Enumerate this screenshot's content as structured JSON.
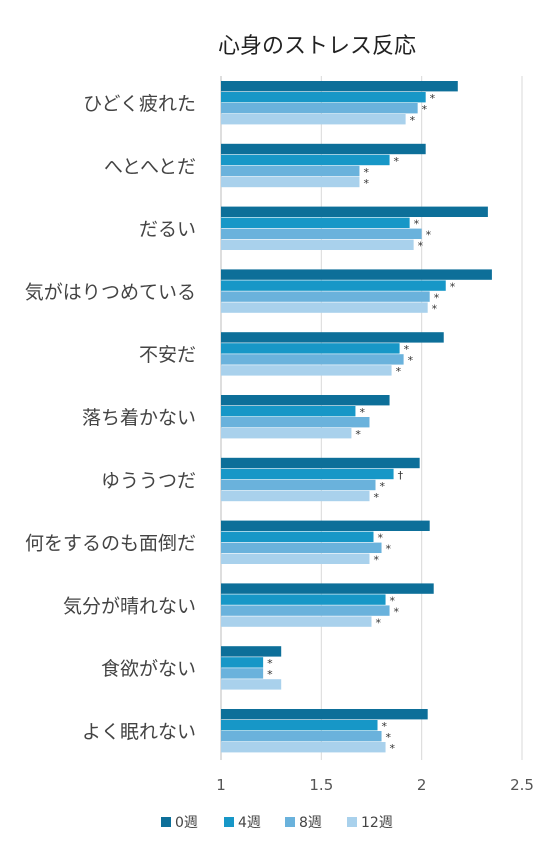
{
  "chart_data": {
    "type": "bar",
    "orientation": "horizontal",
    "title": "心身のストレス反応",
    "xlabel": "",
    "ylabel": "",
    "xlim": [
      1,
      2.5
    ],
    "xticks": [
      "1",
      "1.5",
      "2",
      "2.5"
    ],
    "grid": true,
    "legend_position": "bottom",
    "categories": [
      "ひどく疲れた",
      "へとへとだ",
      "だるい",
      "気がはりつめている",
      "不安だ",
      "落ち着かない",
      "ゆううつだ",
      "何をするのも面倒だ",
      "気分が晴れない",
      "食欲がない",
      "よく眠れない"
    ],
    "series": [
      {
        "name": "0週",
        "color": "#0d6f99",
        "values": [
          2.18,
          2.02,
          2.33,
          2.35,
          2.11,
          1.84,
          1.99,
          2.04,
          2.06,
          1.3,
          2.03
        ],
        "marks": [
          "",
          "",
          "",
          "",
          "",
          "",
          "",
          "",
          "",
          "",
          ""
        ]
      },
      {
        "name": "4週",
        "color": "#1797c7",
        "values": [
          2.02,
          1.84,
          1.94,
          2.12,
          1.89,
          1.67,
          1.86,
          1.76,
          1.82,
          1.21,
          1.78
        ],
        "marks": [
          "*",
          "*",
          "*",
          "*",
          "*",
          "*",
          "†",
          "*",
          "*",
          "*",
          "*"
        ]
      },
      {
        "name": "8週",
        "color": "#6ab2dc",
        "values": [
          1.98,
          1.69,
          2.0,
          2.04,
          1.91,
          1.74,
          1.77,
          1.8,
          1.84,
          1.21,
          1.8
        ],
        "marks": [
          "*",
          "*",
          "*",
          "*",
          "*",
          "",
          "*",
          "*",
          "*",
          "*",
          "*"
        ]
      },
      {
        "name": "12週",
        "color": "#a9d1ec",
        "values": [
          1.92,
          1.69,
          1.96,
          2.03,
          1.85,
          1.65,
          1.74,
          1.74,
          1.75,
          1.3,
          1.82
        ],
        "marks": [
          "*",
          "*",
          "*",
          "*",
          "*",
          "*",
          "*",
          "*",
          "*",
          "",
          "*"
        ]
      }
    ]
  }
}
